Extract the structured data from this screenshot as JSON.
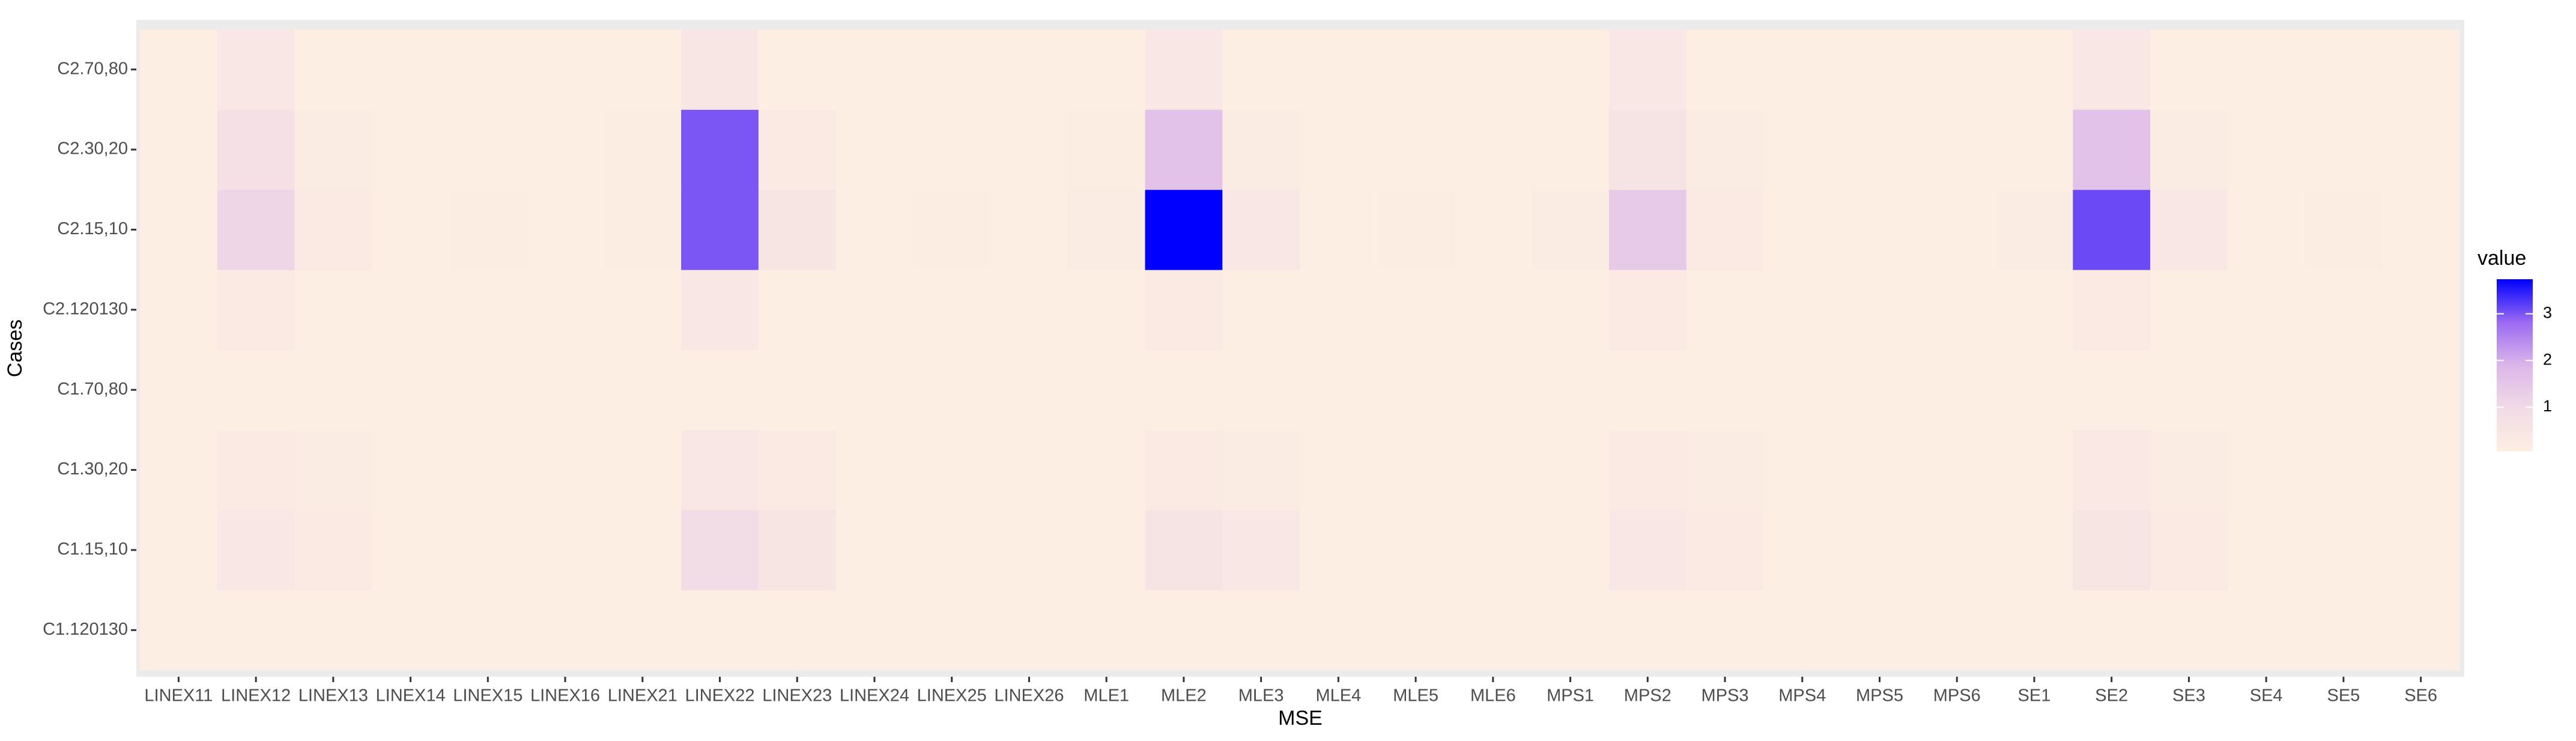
{
  "chart_data": {
    "type": "heatmap",
    "x_label": "MSE",
    "y_label": "Cases",
    "categories": [
      "LINEX11",
      "LINEX12",
      "LINEX13",
      "LINEX14",
      "LINEX15",
      "LINEX16",
      "LINEX21",
      "LINEX22",
      "LINEX23",
      "LINEX24",
      "LINEX25",
      "LINEX26",
      "MLE1",
      "MLE2",
      "MLE3",
      "MLE4",
      "MLE5",
      "MLE6",
      "MPS1",
      "MPS2",
      "MPS3",
      "MPS4",
      "MPS5",
      "MPS6",
      "SE1",
      "SE2",
      "SE3",
      "SE4",
      "SE5",
      "SE6"
    ],
    "y_categories": [
      "C1.120130",
      "C1.15,10",
      "C1.30,20",
      "C1.70,80",
      "C2.120130",
      "C2.15,10",
      "C2.30,20",
      "C2.70,80"
    ],
    "values": [
      [
        0.1,
        0.1,
        0.1,
        0.1,
        0.1,
        0.1,
        0.1,
        0.1,
        0.1,
        0.1,
        0.1,
        0.1,
        0.1,
        0.1,
        0.1,
        0.1,
        0.1,
        0.1,
        0.1,
        0.1,
        0.1,
        0.1,
        0.1,
        0.1,
        0.1,
        0.1,
        0.1,
        0.1,
        0.1,
        0.1
      ],
      [
        0.1,
        0.4,
        0.3,
        0.1,
        0.1,
        0.1,
        0.1,
        0.9,
        0.5,
        0.1,
        0.1,
        0.1,
        0.1,
        0.6,
        0.4,
        0.1,
        0.1,
        0.1,
        0.1,
        0.4,
        0.3,
        0.1,
        0.1,
        0.1,
        0.1,
        0.5,
        0.3,
        0.1,
        0.1,
        0.1
      ],
      [
        0.1,
        0.3,
        0.25,
        0.1,
        0.1,
        0.1,
        0.1,
        0.4,
        0.3,
        0.1,
        0.1,
        0.1,
        0.1,
        0.3,
        0.2,
        0.1,
        0.1,
        0.1,
        0.1,
        0.3,
        0.25,
        0.1,
        0.1,
        0.1,
        0.1,
        0.35,
        0.2,
        0.1,
        0.1,
        0.1
      ],
      [
        0.1,
        0.1,
        0.1,
        0.1,
        0.1,
        0.1,
        0.1,
        0.1,
        0.1,
        0.1,
        0.1,
        0.1,
        0.1,
        0.1,
        0.1,
        0.1,
        0.1,
        0.1,
        0.1,
        0.1,
        0.1,
        0.1,
        0.1,
        0.1,
        0.1,
        0.1,
        0.1,
        0.1,
        0.1,
        0.1
      ],
      [
        0.1,
        0.3,
        0.1,
        0.1,
        0.1,
        0.1,
        0.1,
        0.4,
        0.1,
        0.1,
        0.1,
        0.1,
        0.1,
        0.3,
        0.1,
        0.1,
        0.1,
        0.1,
        0.1,
        0.3,
        0.1,
        0.1,
        0.1,
        0.1,
        0.1,
        0.3,
        0.1,
        0.1,
        0.1,
        0.1
      ],
      [
        0.1,
        1.1,
        0.3,
        0.1,
        0.15,
        0.1,
        0.15,
        3.0,
        0.5,
        0.1,
        0.15,
        0.1,
        0.2,
        3.74,
        0.4,
        0.1,
        0.15,
        0.1,
        0.2,
        1.4,
        0.3,
        0.1,
        0.1,
        0.1,
        0.2,
        3.1,
        0.4,
        0.1,
        0.15,
        0.1
      ],
      [
        0.1,
        0.7,
        0.25,
        0.1,
        0.1,
        0.1,
        0.15,
        3.0,
        0.3,
        0.1,
        0.1,
        0.1,
        0.15,
        1.6,
        0.2,
        0.1,
        0.1,
        0.1,
        0.1,
        0.6,
        0.2,
        0.1,
        0.1,
        0.1,
        0.1,
        1.6,
        0.2,
        0.1,
        0.1,
        0.1
      ],
      [
        0.1,
        0.4,
        0.1,
        0.1,
        0.1,
        0.1,
        0.1,
        0.45,
        0.1,
        0.1,
        0.1,
        0.1,
        0.1,
        0.4,
        0.1,
        0.1,
        0.1,
        0.1,
        0.1,
        0.4,
        0.1,
        0.1,
        0.1,
        0.1,
        0.1,
        0.4,
        0.1,
        0.1,
        0.1,
        0.1
      ]
    ],
    "colorbar": {
      "title": "value",
      "lim": [
        0.05,
        3.74
      ],
      "ticks": [
        1,
        2,
        3
      ],
      "colors": [
        "#fdefe2",
        "#f1dbe6",
        "#dcb6ea",
        "#9a6af2",
        "#0000ff"
      ]
    }
  }
}
